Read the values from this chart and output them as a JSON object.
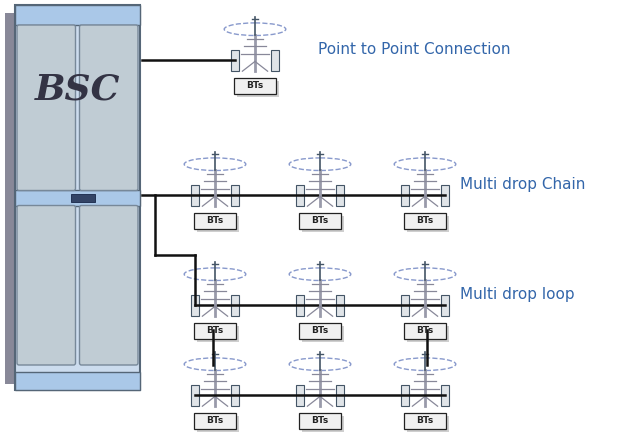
{
  "bg_color": "#ffffff",
  "labels": {
    "point_to_point": "Point to Point Connection",
    "multi_drop_chain": "Multi drop Chain",
    "multi_drop_loop": "Multi drop loop"
  },
  "label_fontsize": 11,
  "bts_fontsize": 6.5,
  "bsc_fontsize": 26,
  "line_color": "#111111",
  "ellipse_color": "#8899cc",
  "tower_color": "#555566",
  "tower_shadow": "#aaaaaa",
  "bts_box_color": "#f0f0f0",
  "bts_box_border": "#222222",
  "label_color": "#3366aa"
}
